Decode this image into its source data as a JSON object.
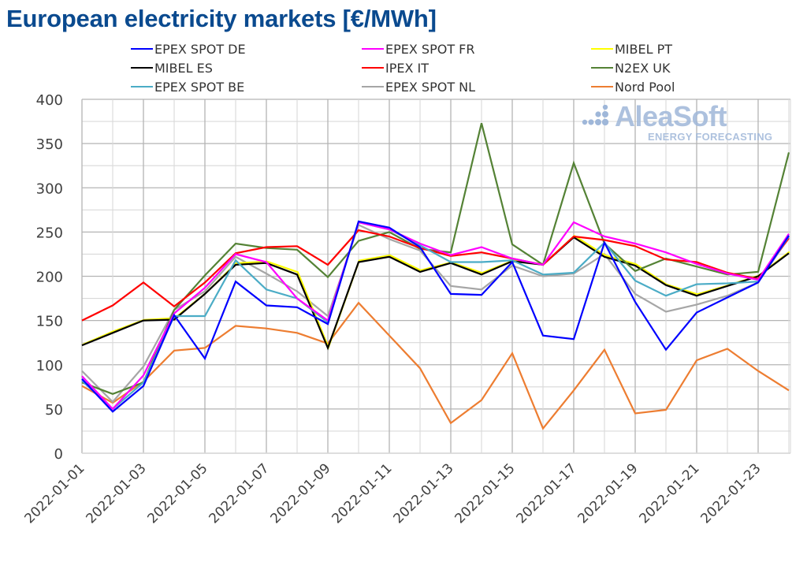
{
  "chart_data": {
    "type": "line",
    "title": "European electricity markets [€/MWh]",
    "xlabel": "",
    "ylabel": "",
    "ylim": [
      0,
      400
    ],
    "yticks": [
      "0",
      "50",
      "100",
      "150",
      "200",
      "250",
      "300",
      "350",
      "400"
    ],
    "ytick_values": [
      0,
      50,
      100,
      150,
      200,
      250,
      300,
      350,
      400
    ],
    "grid": true,
    "legend_position": "top",
    "x": [
      "2022-01-01",
      "2022-01-02",
      "2022-01-03",
      "2022-01-04",
      "2022-01-05",
      "2022-01-06",
      "2022-01-07",
      "2022-01-08",
      "2022-01-09",
      "2022-01-10",
      "2022-01-11",
      "2022-01-12",
      "2022-01-13",
      "2022-01-14",
      "2022-01-15",
      "2022-01-16",
      "2022-01-17",
      "2022-01-18",
      "2022-01-19",
      "2022-01-20",
      "2022-01-21",
      "2022-01-22",
      "2022-01-23",
      "2022-01-24"
    ],
    "xtick_labels": [
      "2022-01-01",
      "2022-01-03",
      "2022-01-05",
      "2022-01-07",
      "2022-01-09",
      "2022-01-11",
      "2022-01-13",
      "2022-01-15",
      "2022-01-17",
      "2022-01-19",
      "2022-01-21",
      "2022-01-23"
    ],
    "series": [
      {
        "name": "EPEX SPOT DE",
        "color": "#0000ff",
        "values": [
          84,
          47,
          76,
          156,
          107,
          194,
          167,
          165,
          146,
          262,
          255,
          233,
          180,
          179,
          216,
          133,
          129,
          238,
          171,
          117,
          159,
          176,
          193,
          246
        ]
      },
      {
        "name": "EPEX SPOT FR",
        "color": "#ff00ff",
        "values": [
          87,
          50,
          88,
          158,
          187,
          225,
          216,
          175,
          150,
          261,
          253,
          237,
          224,
          233,
          220,
          213,
          261,
          245,
          237,
          227,
          214,
          203,
          196,
          248
        ]
      },
      {
        "name": "MIBEL PT",
        "color": "#ffff00",
        "values": [
          122,
          137,
          150,
          152,
          180,
          214,
          216,
          204,
          119,
          217,
          223,
          206,
          215,
          203,
          217,
          213,
          245,
          223,
          213,
          190,
          179,
          189,
          200,
          227
        ]
      },
      {
        "name": "MIBEL ES",
        "color": "#000000",
        "values": [
          122,
          136,
          150,
          151,
          180,
          213,
          215,
          202,
          119,
          216,
          222,
          205,
          215,
          202,
          217,
          213,
          244,
          222,
          212,
          190,
          178,
          189,
          200,
          226
        ]
      },
      {
        "name": "IPEX IT",
        "color": "#ff0000",
        "values": [
          150,
          167,
          193,
          166,
          193,
          226,
          233,
          234,
          213,
          252,
          245,
          232,
          223,
          227,
          220,
          213,
          245,
          241,
          234,
          219,
          216,
          204,
          197,
          243
        ]
      },
      {
        "name": "N2EX UK",
        "color": "#548235",
        "values": [
          80,
          67,
          80,
          162,
          201,
          237,
          232,
          230,
          199,
          240,
          250,
          231,
          227,
          373,
          236,
          213,
          328,
          237,
          206,
          220,
          211,
          202,
          205,
          340
        ]
      },
      {
        "name": "EPEX SPOT BE",
        "color": "#4bacc6",
        "values": [
          82,
          50,
          80,
          155,
          155,
          218,
          185,
          175,
          148,
          261,
          253,
          235,
          216,
          216,
          218,
          202,
          204,
          238,
          195,
          178,
          191,
          192,
          194,
          245
        ]
      },
      {
        "name": "EPEX SPOT NL",
        "color": "#a6a6a6",
        "values": [
          93,
          58,
          98,
          162,
          183,
          222,
          203,
          183,
          155,
          258,
          242,
          229,
          189,
          185,
          212,
          200,
          203,
          225,
          180,
          160,
          168,
          178,
          193,
          244
        ]
      },
      {
        "name": "Nord Pool",
        "color": "#ed7d31",
        "values": [
          76,
          57,
          81,
          116,
          119,
          144,
          141,
          136,
          124,
          170,
          133,
          96,
          34,
          60,
          113,
          28,
          71,
          117,
          45,
          49,
          105,
          118,
          93,
          71
        ]
      }
    ]
  },
  "logo": {
    "name": "AleaSoft",
    "tagline": "ENERGY FORECASTING"
  }
}
